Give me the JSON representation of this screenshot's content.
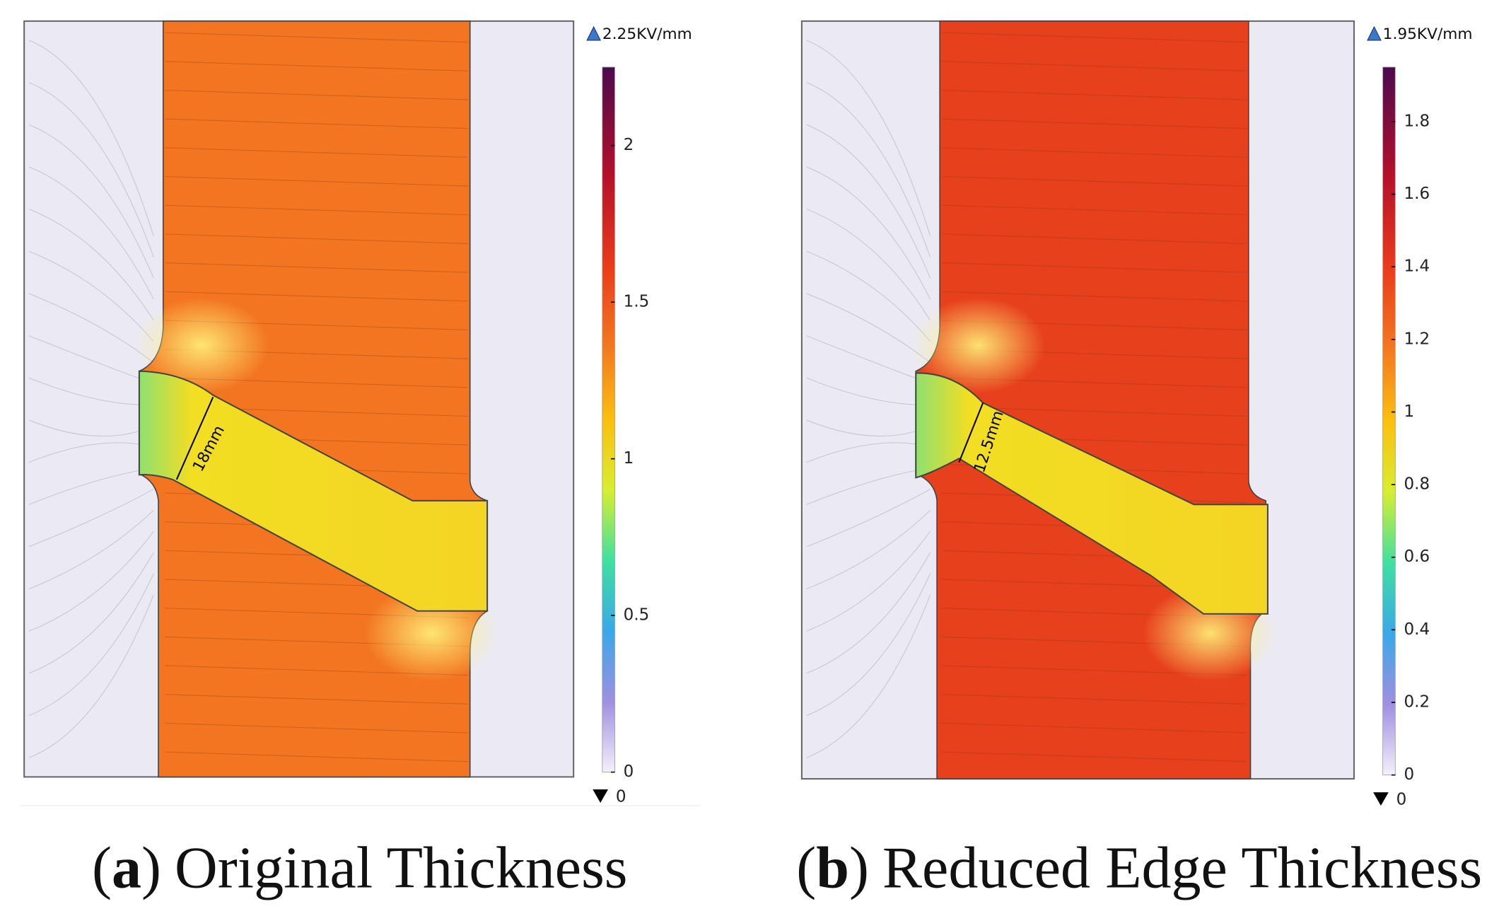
{
  "panels": [
    {
      "colorbar": {
        "max_label": "2.25KV/mm",
        "min_label": "0",
        "range": [
          0,
          2.25
        ],
        "ticks": [
          0,
          0.5,
          1,
          1.5,
          2
        ]
      },
      "dimension": "18mm",
      "caption": {
        "open": "(",
        "label": "a",
        "close": ")",
        "text": "Original Thickness"
      }
    },
    {
      "colorbar": {
        "max_label": "1.95KV/mm",
        "min_label": "0",
        "range": [
          0,
          1.95
        ],
        "ticks": [
          0,
          0.2,
          0.4,
          0.6,
          0.8,
          1,
          1.2,
          1.4,
          1.6,
          1.8
        ]
      },
      "dimension": "12.5mm",
      "caption": {
        "open": "(",
        "label": "b",
        "close": ")",
        "text": "Reduced Edge Thickness"
      }
    }
  ]
}
